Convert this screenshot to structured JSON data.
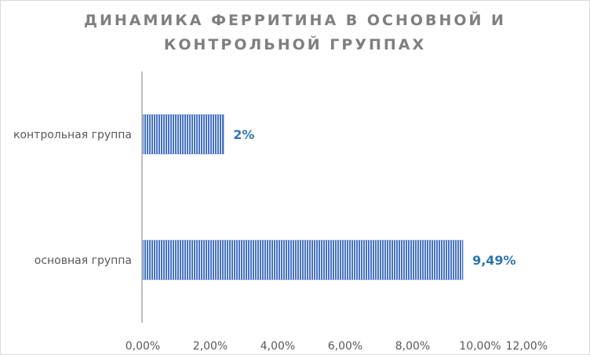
{
  "chart_data": {
    "type": "bar",
    "orientation": "horizontal",
    "title_lines": [
      "ДИНАМИКА ФЕРРИТИНА В ОСНОВНОЙ И",
      "КОНТРОЛЬНОЙ ГРУППАХ"
    ],
    "categories": [
      "основная группа",
      "контрольная группа"
    ],
    "values": [
      9.49,
      2.4
    ],
    "data_labels": [
      "9,49%",
      "2%"
    ],
    "x_ticks": [
      "0,00%",
      "2,00%",
      "4,00%",
      "6,00%",
      "8,00%",
      "10,00%",
      "12,00%"
    ],
    "xlim": [
      0,
      12
    ],
    "grid": false,
    "legend": "none",
    "bar_color": "#4472c4",
    "data_label_color": "#2e75b6"
  }
}
